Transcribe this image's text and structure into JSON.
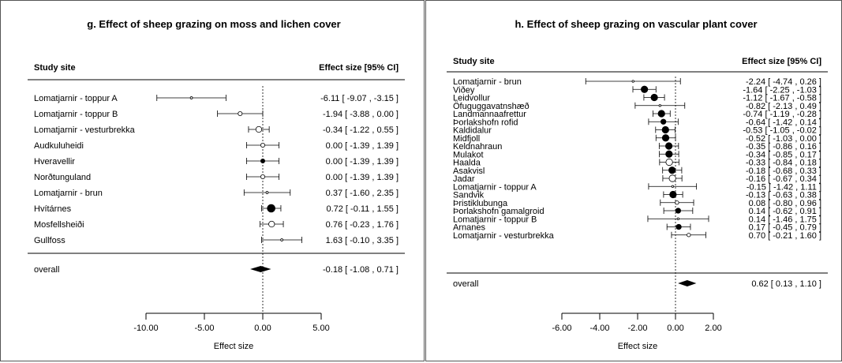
{
  "chart_data": [
    {
      "type": "forest",
      "title": "g. Effect of sheep grazing on moss and lichen cover",
      "col_site": "Study site",
      "col_effect": "Effect size [95% CI]",
      "xlabel": "Effect size",
      "xlim": [
        -10,
        5
      ],
      "xticks": [
        "-10.00",
        "-5.00",
        "0.00",
        "5.00"
      ],
      "rows": [
        {
          "site": "Lomatjarnir - toppur A",
          "est": -6.11,
          "lo": -9.07,
          "hi": -3.15,
          "text": "-6.11 [ -9.07 , -3.15 ]",
          "filled": false,
          "size": 1
        },
        {
          "site": "Lomatjarnir - toppur B",
          "est": -1.94,
          "lo": -3.88,
          "hi": 0.0,
          "text": "-1.94 [ -3.88 ,  0.00 ]",
          "filled": false,
          "size": 2
        },
        {
          "site": "Lomatjarnir - vesturbrekka",
          "est": -0.34,
          "lo": -1.22,
          "hi": 0.55,
          "text": "-0.34 [ -1.22 ,  0.55 ]",
          "filled": false,
          "size": 3
        },
        {
          "site": "Audkuluheidi",
          "est": 0.0,
          "lo": -1.39,
          "hi": 1.39,
          "text": "0.00 [ -1.39 ,  1.39 ]",
          "filled": false,
          "size": 2
        },
        {
          "site": "Hveravellir",
          "est": 0.0,
          "lo": -1.39,
          "hi": 1.39,
          "text": "0.00 [ -1.39 ,  1.39 ]",
          "filled": true,
          "size": 2
        },
        {
          "site": "Norðtunguland",
          "est": 0.0,
          "lo": -1.39,
          "hi": 1.39,
          "text": "0.00 [ -1.39 ,  1.39 ]",
          "filled": false,
          "size": 2
        },
        {
          "site": "Lomatjarnir - brun",
          "est": 0.37,
          "lo": -1.6,
          "hi": 2.35,
          "text": "0.37 [ -1.60 ,  2.35 ]",
          "filled": false,
          "size": 1
        },
        {
          "site": "Hvítárnes",
          "est": 0.72,
          "lo": -0.11,
          "hi": 1.55,
          "text": "0.72 [ -0.11 ,  1.55 ]",
          "filled": true,
          "size": 4
        },
        {
          "site": "Mosfellsheiði",
          "est": 0.76,
          "lo": -0.23,
          "hi": 1.76,
          "text": "0.76 [ -0.23 ,  1.76 ]",
          "filled": false,
          "size": 3
        },
        {
          "site": "Gullfoss",
          "est": 1.63,
          "lo": -0.1,
          "hi": 3.35,
          "text": "1.63 [ -0.10 ,  3.35 ]",
          "filled": false,
          "size": 1
        }
      ],
      "overall": {
        "label": "overall",
        "est": -0.18,
        "lo": -1.08,
        "hi": 0.71,
        "text": "-0.18 [ -1.08 ,  0.71 ]"
      }
    },
    {
      "type": "forest",
      "title": "h. Effect of sheep grazing on vascular plant cover",
      "col_site": "Study site",
      "col_effect": "Effect size [95% CI]",
      "xlabel": "Effect size",
      "xlim": [
        -6,
        2
      ],
      "xticks": [
        "-6.00",
        "-4.00",
        "-2.00",
        "0.00",
        "2.00"
      ],
      "rows": [
        {
          "site": "Lomatjarnir - brun",
          "est": -2.24,
          "lo": -4.74,
          "hi": 0.26,
          "text": "-2.24 [ -4.74 ,  0.26 ]",
          "filled": false,
          "size": 1
        },
        {
          "site": "Viðey",
          "est": -1.64,
          "lo": -2.25,
          "hi": -1.03,
          "text": "-1.64 [ -2.25 , -1.03 ]",
          "filled": true,
          "size": 4
        },
        {
          "site": "Leidvollur",
          "est": -1.12,
          "lo": -1.67,
          "hi": -0.58,
          "text": "-1.12 [ -1.67 , -0.58 ]",
          "filled": true,
          "size": 4
        },
        {
          "site": "Öfuguggavatnshæð",
          "est": -0.82,
          "lo": -2.13,
          "hi": 0.49,
          "text": "-0.82 [ -2.13 ,  0.49 ]",
          "filled": false,
          "size": 1
        },
        {
          "site": "Landmannaafrettur",
          "est": -0.74,
          "lo": -1.19,
          "hi": -0.28,
          "text": "-0.74 [ -1.19 , -0.28 ]",
          "filled": true,
          "size": 4
        },
        {
          "site": "Þorlakshofn rofid",
          "est": -0.64,
          "lo": -1.42,
          "hi": 0.14,
          "text": "-0.64 [ -1.42 ,  0.14 ]",
          "filled": true,
          "size": 3
        },
        {
          "site": "Kaldidalur",
          "est": -0.53,
          "lo": -1.05,
          "hi": -0.02,
          "text": "-0.53 [ -1.05 , -0.02 ]",
          "filled": true,
          "size": 4
        },
        {
          "site": "Midfjoll",
          "est": -0.52,
          "lo": -1.03,
          "hi": 0.0,
          "text": "-0.52 [ -1.03 ,  0.00 ]",
          "filled": true,
          "size": 4
        },
        {
          "site": "Keldnahraun",
          "est": -0.35,
          "lo": -0.86,
          "hi": 0.16,
          "text": "-0.35 [ -0.86 ,  0.16 ]",
          "filled": true,
          "size": 4
        },
        {
          "site": "Mulakot",
          "est": -0.34,
          "lo": -0.85,
          "hi": 0.17,
          "text": "-0.34 [ -0.85 ,  0.17 ]",
          "filled": true,
          "size": 4
        },
        {
          "site": "Haalda",
          "est": -0.33,
          "lo": -0.84,
          "hi": 0.18,
          "text": "-0.33 [ -0.84 ,  0.18 ]",
          "filled": false,
          "size": 4
        },
        {
          "site": "Asakvisl",
          "est": -0.18,
          "lo": -0.68,
          "hi": 0.33,
          "text": "-0.18 [ -0.68 ,  0.33 ]",
          "filled": true,
          "size": 4
        },
        {
          "site": "Jadar",
          "est": -0.16,
          "lo": -0.67,
          "hi": 0.34,
          "text": "-0.16 [ -0.67 ,  0.34 ]",
          "filled": false,
          "size": 4
        },
        {
          "site": "Lomatjarnir - toppur A",
          "est": -0.15,
          "lo": -1.42,
          "hi": 1.11,
          "text": "-0.15 [ -1.42 ,  1.11 ]",
          "filled": false,
          "size": 1
        },
        {
          "site": "Sandvik",
          "est": -0.13,
          "lo": -0.63,
          "hi": 0.38,
          "text": "-0.13 [ -0.63 ,  0.38 ]",
          "filled": true,
          "size": 4
        },
        {
          "site": "Þristiklubunga",
          "est": 0.08,
          "lo": -0.8,
          "hi": 0.96,
          "text": "0.08 [ -0.80 ,  0.96 ]",
          "filled": false,
          "size": 2
        },
        {
          "site": "Þorlakshofn gamalgroid",
          "est": 0.14,
          "lo": -0.62,
          "hi": 0.91,
          "text": "0.14 [ -0.62 ,  0.91 ]",
          "filled": true,
          "size": 3
        },
        {
          "site": "Lomatjarnir - toppur B",
          "est": 0.14,
          "lo": -1.46,
          "hi": 1.75,
          "text": "0.14 [ -1.46 ,  1.75 ]",
          "filled": false,
          "size": 1
        },
        {
          "site": "Arnanes",
          "est": 0.17,
          "lo": -0.45,
          "hi": 0.79,
          "text": "0.17 [ -0.45 ,  0.79 ]",
          "filled": true,
          "size": 3
        },
        {
          "site": "Lomatjarnir - vesturbrekka",
          "est": 0.7,
          "lo": -0.21,
          "hi": 1.6,
          "text": "0.70 [ -0.21 ,  1.60 ]",
          "filled": false,
          "size": 2
        }
      ],
      "overall": {
        "label": "overall",
        "est": 0.62,
        "lo": 0.13,
        "hi": 1.1,
        "text": "0.62 [ 0.13 ,  1.10 ]"
      }
    }
  ]
}
